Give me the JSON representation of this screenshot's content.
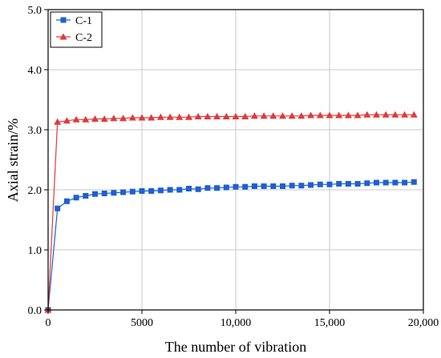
{
  "chart_data": {
    "type": "line",
    "xlabel": "The number of vibration",
    "ylabel": "Axial strain/%",
    "xlim": [
      0,
      20000
    ],
    "ylim": [
      0,
      5.0
    ],
    "xticks": [
      0,
      5000,
      10000,
      15000,
      20000
    ],
    "xtick_labels": [
      "0",
      "5000",
      "10,000",
      "15,000",
      "20,000"
    ],
    "yticks": [
      0,
      1,
      2,
      3,
      4,
      5
    ],
    "ytick_labels": [
      "0.0",
      "1.0",
      "2.0",
      "3.0",
      "4.0",
      "5.0"
    ],
    "grid": true,
    "legend_position": "top-left",
    "series": [
      {
        "name": "C-1",
        "color": "#1f5fd1",
        "marker": "square",
        "points": [
          [
            0,
            0.0
          ],
          [
            500,
            1.69
          ],
          [
            1000,
            1.81
          ],
          [
            1500,
            1.87
          ],
          [
            2000,
            1.9
          ],
          [
            2500,
            1.93
          ],
          [
            3000,
            1.94
          ],
          [
            3500,
            1.95
          ],
          [
            4000,
            1.96
          ],
          [
            4500,
            1.97
          ],
          [
            5000,
            1.98
          ],
          [
            5500,
            1.98
          ],
          [
            6000,
            1.99
          ],
          [
            6500,
            2.0
          ],
          [
            7000,
            2.0
          ],
          [
            7500,
            2.02
          ],
          [
            8000,
            2.01
          ],
          [
            8500,
            2.03
          ],
          [
            9000,
            2.03
          ],
          [
            9500,
            2.04
          ],
          [
            10000,
            2.05
          ],
          [
            10500,
            2.05
          ],
          [
            11000,
            2.06
          ],
          [
            11500,
            2.06
          ],
          [
            12000,
            2.06
          ],
          [
            12500,
            2.06
          ],
          [
            13000,
            2.07
          ],
          [
            13500,
            2.07
          ],
          [
            14000,
            2.08
          ],
          [
            14500,
            2.09
          ],
          [
            15000,
            2.09
          ],
          [
            15500,
            2.1
          ],
          [
            16000,
            2.1
          ],
          [
            16500,
            2.1
          ],
          [
            17000,
            2.11
          ],
          [
            17500,
            2.12
          ],
          [
            18000,
            2.12
          ],
          [
            18500,
            2.12
          ],
          [
            19000,
            2.12
          ],
          [
            19500,
            2.13
          ]
        ]
      },
      {
        "name": "C-2",
        "color": "#e03a3a",
        "marker": "triangle",
        "points": [
          [
            0,
            0.0
          ],
          [
            500,
            3.13
          ],
          [
            1000,
            3.15
          ],
          [
            1500,
            3.17
          ],
          [
            2000,
            3.17
          ],
          [
            2500,
            3.18
          ],
          [
            3000,
            3.18
          ],
          [
            3500,
            3.19
          ],
          [
            4000,
            3.19
          ],
          [
            4500,
            3.2
          ],
          [
            5000,
            3.2
          ],
          [
            5500,
            3.2
          ],
          [
            6000,
            3.21
          ],
          [
            6500,
            3.21
          ],
          [
            7000,
            3.21
          ],
          [
            7500,
            3.21
          ],
          [
            8000,
            3.22
          ],
          [
            8500,
            3.22
          ],
          [
            9000,
            3.22
          ],
          [
            9500,
            3.22
          ],
          [
            10000,
            3.22
          ],
          [
            10500,
            3.22
          ],
          [
            11000,
            3.23
          ],
          [
            11500,
            3.23
          ],
          [
            12000,
            3.23
          ],
          [
            12500,
            3.23
          ],
          [
            13000,
            3.23
          ],
          [
            13500,
            3.23
          ],
          [
            14000,
            3.24
          ],
          [
            14500,
            3.24
          ],
          [
            15000,
            3.24
          ],
          [
            15500,
            3.24
          ],
          [
            16000,
            3.24
          ],
          [
            16500,
            3.24
          ],
          [
            17000,
            3.25
          ],
          [
            17500,
            3.25
          ],
          [
            18000,
            3.25
          ],
          [
            18500,
            3.25
          ],
          [
            19000,
            3.25
          ],
          [
            19500,
            3.25
          ]
        ]
      }
    ]
  }
}
